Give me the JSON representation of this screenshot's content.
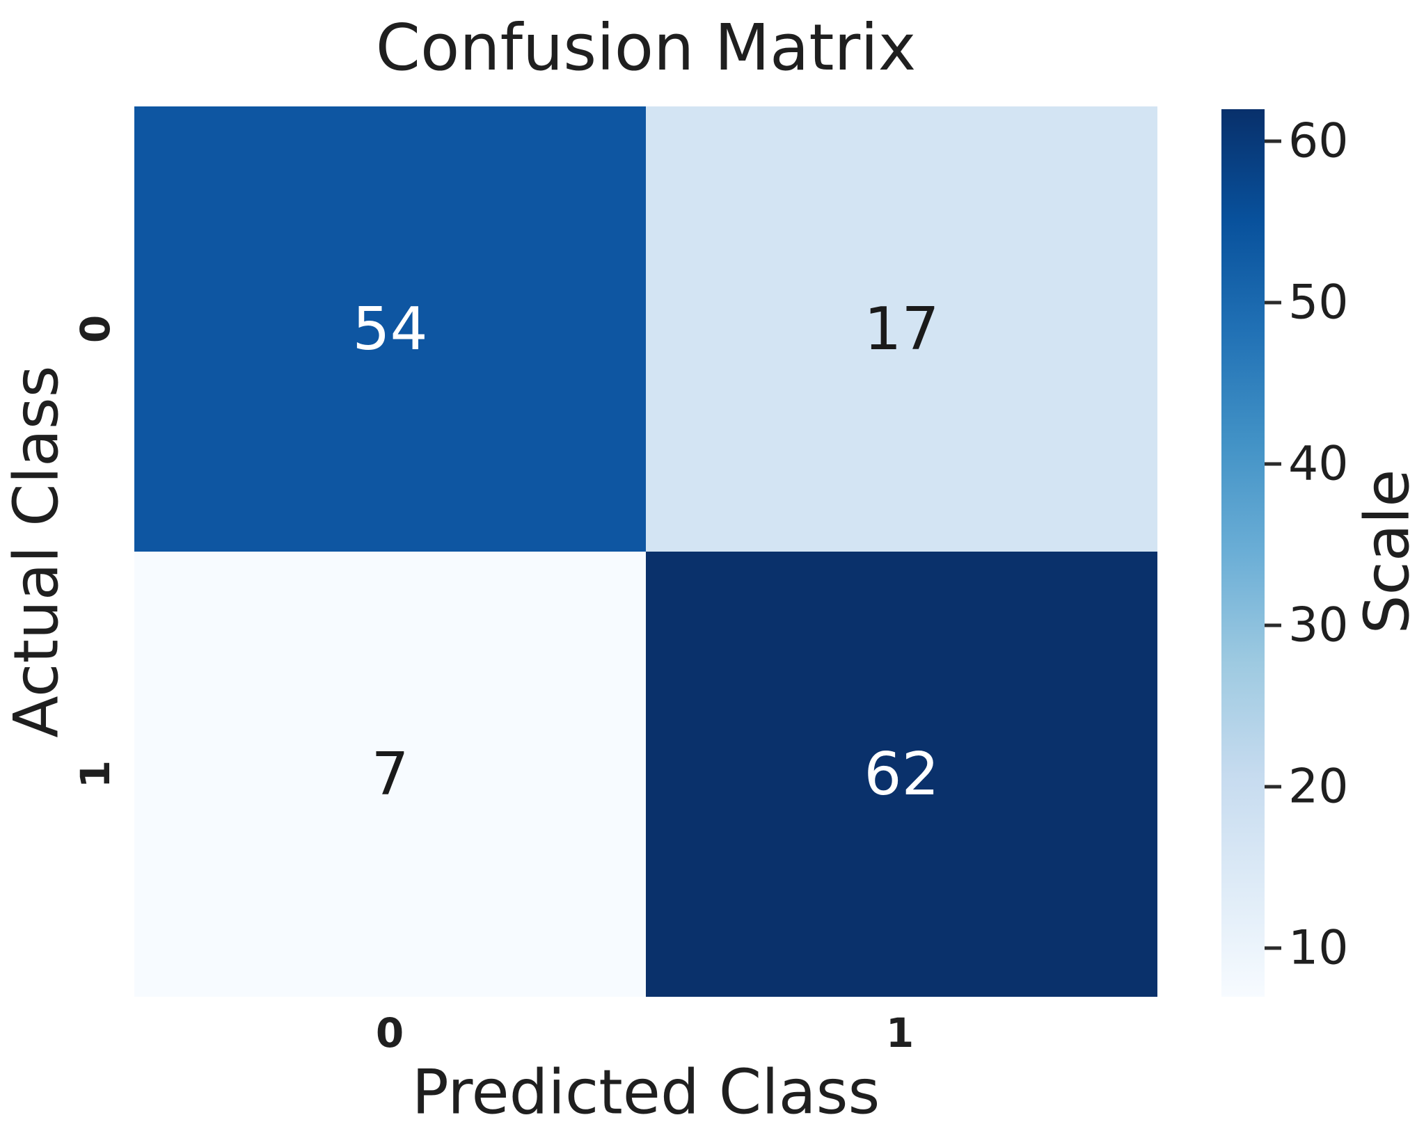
{
  "figure": {
    "title": "Confusion Matrix",
    "x_axis": {
      "label": "Predicted Class",
      "ticks": [
        "0",
        "1"
      ]
    },
    "y_axis": {
      "label": "Actual Class",
      "ticks": [
        "0",
        "1"
      ]
    },
    "colorbar": {
      "label": "Scale"
    }
  },
  "chart_data": {
    "type": "heatmap",
    "title": "Confusion Matrix",
    "xlabel": "Predicted Class",
    "ylabel": "Actual Class",
    "x_categories": [
      "0",
      "1"
    ],
    "y_categories": [
      "0",
      "1"
    ],
    "matrix": [
      [
        54,
        17
      ],
      [
        7,
        62
      ]
    ],
    "annotations": [
      "54",
      "17",
      "7",
      "62"
    ],
    "colormap": "Blues",
    "vmin": 7,
    "vmax": 62,
    "colorbar_label": "Scale",
    "colorbar_ticks": [
      10,
      20,
      30,
      40,
      50,
      60
    ],
    "colorbar_gradient_bottom_to_top": [
      "#f7fbff",
      "#deebf7",
      "#c6dbef",
      "#9ecae1",
      "#6baed6",
      "#4292c6",
      "#2171b5",
      "#08519c",
      "#08306b"
    ],
    "cells": [
      {
        "row": 0,
        "col": 0,
        "value": "54",
        "bg": "#0e56a2",
        "fg": "#ffffff"
      },
      {
        "row": 0,
        "col": 1,
        "value": "17",
        "bg": "#d3e4f3",
        "fg": "#1a1a1a"
      },
      {
        "row": 1,
        "col": 0,
        "value": "7",
        "bg": "#f7fbff",
        "fg": "#1a1a1a"
      },
      {
        "row": 1,
        "col": 1,
        "value": "62",
        "bg": "#0a316b",
        "fg": "#ffffff"
      }
    ],
    "layout": {
      "legend_position": "right-colorbar",
      "grid": false
    }
  }
}
